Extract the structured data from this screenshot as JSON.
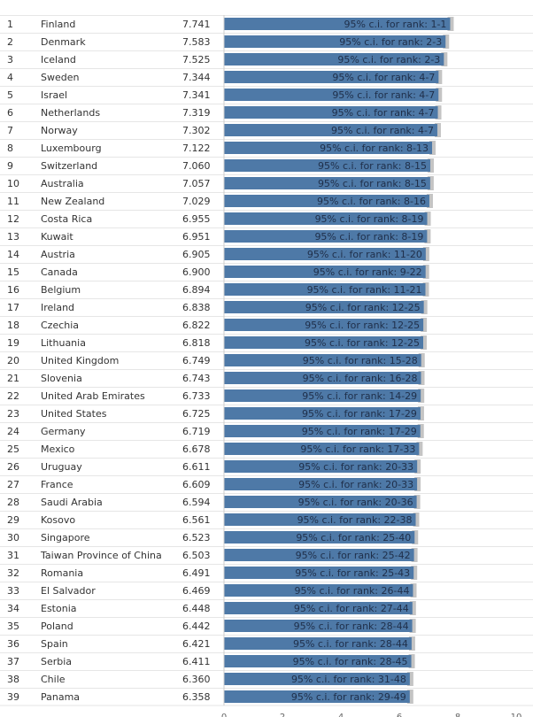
{
  "chart_data": {
    "type": "bar",
    "orientation": "horizontal",
    "title": "",
    "xlabel": "",
    "ylabel": "",
    "xlim": [
      0,
      10
    ],
    "x_ticks": [
      "0",
      "2",
      "4",
      "6",
      "8",
      "10"
    ],
    "colors": {
      "bar": "#4e79a7",
      "ci": "#c4c4c4",
      "row_line": "#e6e6e6",
      "label": "#1f2f4a"
    },
    "rows": [
      {
        "rank": "1",
        "country": "Finland",
        "score": "7.741",
        "value": 7.741,
        "ci_label": "95% c.i. for rank: 1-1"
      },
      {
        "rank": "2",
        "country": "Denmark",
        "score": "7.583",
        "value": 7.583,
        "ci_label": "95% c.i. for rank: 2-3"
      },
      {
        "rank": "3",
        "country": "Iceland",
        "score": "7.525",
        "value": 7.525,
        "ci_label": "95% c.i. for rank: 2-3"
      },
      {
        "rank": "4",
        "country": "Sweden",
        "score": "7.344",
        "value": 7.344,
        "ci_label": "95% c.i. for rank: 4-7"
      },
      {
        "rank": "5",
        "country": "Israel",
        "score": "7.341",
        "value": 7.341,
        "ci_label": "95% c.i. for rank: 4-7"
      },
      {
        "rank": "6",
        "country": "Netherlands",
        "score": "7.319",
        "value": 7.319,
        "ci_label": "95% c.i. for rank: 4-7"
      },
      {
        "rank": "7",
        "country": "Norway",
        "score": "7.302",
        "value": 7.302,
        "ci_label": "95% c.i. for rank: 4-7"
      },
      {
        "rank": "8",
        "country": "Luxembourg",
        "score": "7.122",
        "value": 7.122,
        "ci_label": "95% c.i. for rank: 8-13"
      },
      {
        "rank": "9",
        "country": "Switzerland",
        "score": "7.060",
        "value": 7.06,
        "ci_label": "95% c.i. for rank: 8-15"
      },
      {
        "rank": "10",
        "country": "Australia",
        "score": "7.057",
        "value": 7.057,
        "ci_label": "95% c.i. for rank: 8-15"
      },
      {
        "rank": "11",
        "country": "New Zealand",
        "score": "7.029",
        "value": 7.029,
        "ci_label": "95% c.i. for rank: 8-16"
      },
      {
        "rank": "12",
        "country": "Costa Rica",
        "score": "6.955",
        "value": 6.955,
        "ci_label": "95% c.i. for rank: 8-19"
      },
      {
        "rank": "13",
        "country": "Kuwait",
        "score": "6.951",
        "value": 6.951,
        "ci_label": "95% c.i. for rank: 8-19"
      },
      {
        "rank": "14",
        "country": "Austria",
        "score": "6.905",
        "value": 6.905,
        "ci_label": "95% c.i. for rank: 11-20"
      },
      {
        "rank": "15",
        "country": "Canada",
        "score": "6.900",
        "value": 6.9,
        "ci_label": "95% c.i. for rank: 9-22"
      },
      {
        "rank": "16",
        "country": "Belgium",
        "score": "6.894",
        "value": 6.894,
        "ci_label": "95% c.i. for rank: 11-21"
      },
      {
        "rank": "17",
        "country": "Ireland",
        "score": "6.838",
        "value": 6.838,
        "ci_label": "95% c.i. for rank: 12-25"
      },
      {
        "rank": "18",
        "country": "Czechia",
        "score": "6.822",
        "value": 6.822,
        "ci_label": "95% c.i. for rank: 12-25"
      },
      {
        "rank": "19",
        "country": "Lithuania",
        "score": "6.818",
        "value": 6.818,
        "ci_label": "95% c.i. for rank: 12-25"
      },
      {
        "rank": "20",
        "country": "United Kingdom",
        "score": "6.749",
        "value": 6.749,
        "ci_label": "95% c.i. for rank: 15-28"
      },
      {
        "rank": "21",
        "country": "Slovenia",
        "score": "6.743",
        "value": 6.743,
        "ci_label": "95% c.i. for rank: 16-28"
      },
      {
        "rank": "22",
        "country": "United Arab Emirates",
        "score": "6.733",
        "value": 6.733,
        "ci_label": "95% c.i. for rank: 14-29"
      },
      {
        "rank": "23",
        "country": "United States",
        "score": "6.725",
        "value": 6.725,
        "ci_label": "95% c.i. for rank: 17-29"
      },
      {
        "rank": "24",
        "country": "Germany",
        "score": "6.719",
        "value": 6.719,
        "ci_label": "95% c.i. for rank: 17-29"
      },
      {
        "rank": "25",
        "country": "Mexico",
        "score": "6.678",
        "value": 6.678,
        "ci_label": "95% c.i. for rank: 17-33"
      },
      {
        "rank": "26",
        "country": "Uruguay",
        "score": "6.611",
        "value": 6.611,
        "ci_label": "95% c.i. for rank: 20-33"
      },
      {
        "rank": "27",
        "country": "France",
        "score": "6.609",
        "value": 6.609,
        "ci_label": "95% c.i. for rank: 20-33"
      },
      {
        "rank": "28",
        "country": "Saudi Arabia",
        "score": "6.594",
        "value": 6.594,
        "ci_label": "95% c.i. for rank: 20-36"
      },
      {
        "rank": "29",
        "country": "Kosovo",
        "score": "6.561",
        "value": 6.561,
        "ci_label": "95% c.i. for rank: 22-38"
      },
      {
        "rank": "30",
        "country": "Singapore",
        "score": "6.523",
        "value": 6.523,
        "ci_label": "95% c.i. for rank: 25-40"
      },
      {
        "rank": "31",
        "country": "Taiwan Province of China",
        "score": "6.503",
        "value": 6.503,
        "ci_label": "95% c.i. for rank: 25-42"
      },
      {
        "rank": "32",
        "country": "Romania",
        "score": "6.491",
        "value": 6.491,
        "ci_label": "95% c.i. for rank: 25-43"
      },
      {
        "rank": "33",
        "country": "El Salvador",
        "score": "6.469",
        "value": 6.469,
        "ci_label": "95% c.i. for rank: 26-44"
      },
      {
        "rank": "34",
        "country": "Estonia",
        "score": "6.448",
        "value": 6.448,
        "ci_label": "95% c.i. for rank: 27-44"
      },
      {
        "rank": "35",
        "country": "Poland",
        "score": "6.442",
        "value": 6.442,
        "ci_label": "95% c.i. for rank: 28-44"
      },
      {
        "rank": "36",
        "country": "Spain",
        "score": "6.421",
        "value": 6.421,
        "ci_label": "95% c.i. for rank: 28-44"
      },
      {
        "rank": "37",
        "country": "Serbia",
        "score": "6.411",
        "value": 6.411,
        "ci_label": "95% c.i. for rank: 28-45"
      },
      {
        "rank": "38",
        "country": "Chile",
        "score": "6.360",
        "value": 6.36,
        "ci_label": "95% c.i. for rank: 31-48"
      },
      {
        "rank": "39",
        "country": "Panama",
        "score": "6.358",
        "value": 6.358,
        "ci_label": "95% c.i. for rank: 29-49"
      }
    ]
  }
}
